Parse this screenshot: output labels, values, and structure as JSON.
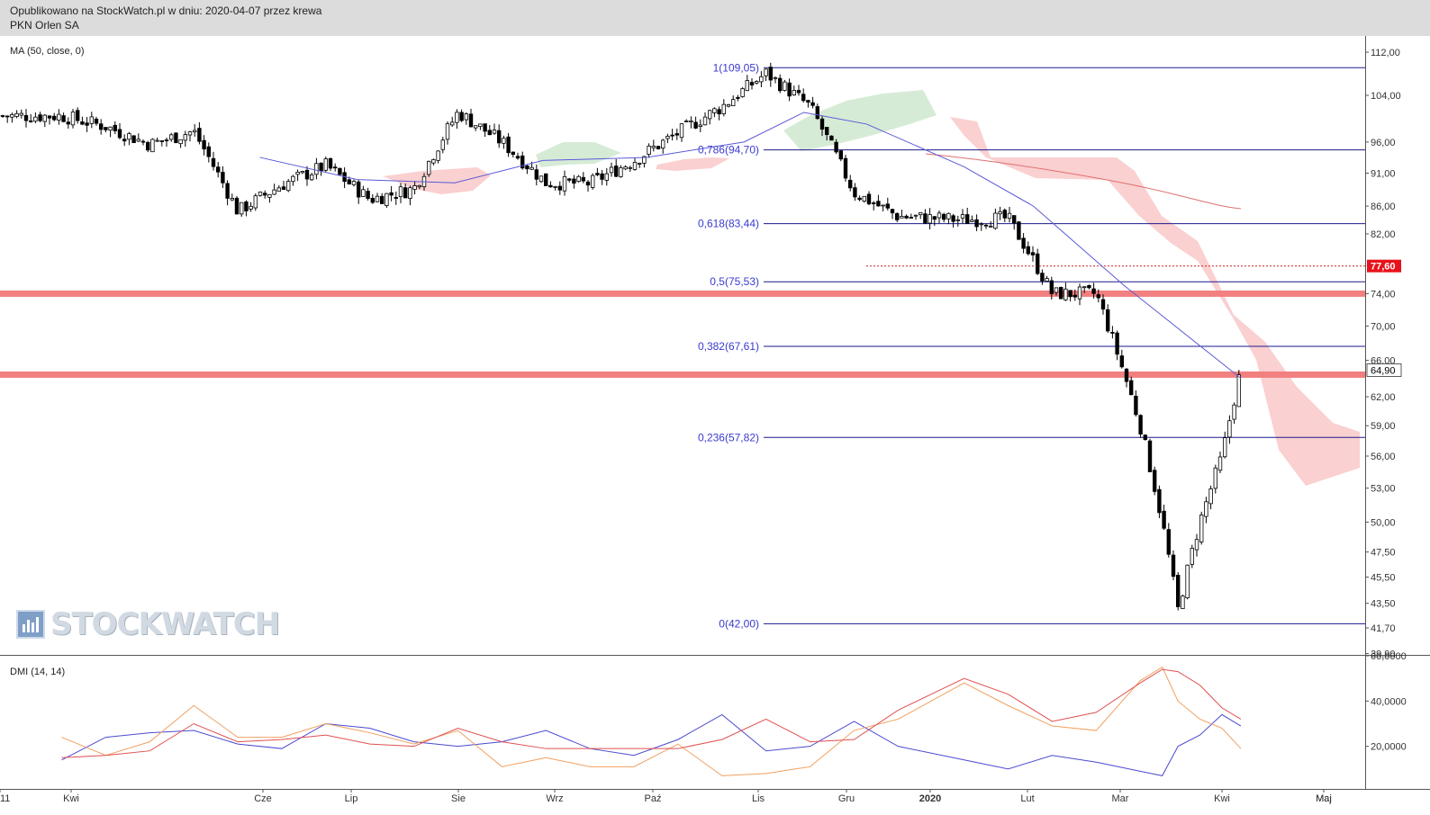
{
  "header": {
    "published": "Opublikowano na StockWatch.pl w dniu: 2020-04-07 przez krewa",
    "instrument": "PKN Orlen SA"
  },
  "logo": {
    "text": "STOCKWATCH"
  },
  "main_indicator_label": "MA (50, close, 0)",
  "dmi_label": "DMI (14, 14)",
  "price_axis_ticks": [
    "112,00",
    "104,00",
    "96,00",
    "91,00",
    "86,00",
    "82,00",
    "74,00",
    "70,00",
    "66,00",
    "62,00",
    "59,00",
    "56,00",
    "53,00",
    "50,00",
    "47,50",
    "45,50",
    "43,50",
    "41,70",
    "39,90"
  ],
  "price_badges": [
    {
      "label": "77,60",
      "value": 77.6,
      "color": "#e8121a"
    },
    {
      "label": "64,90",
      "value": 64.9,
      "color": "#ffffff"
    }
  ],
  "dmi_axis_ticks": [
    "60,0000",
    "40,0000",
    "20,0000"
  ],
  "time_axis_labels": [
    "11",
    "Kwi",
    "Maj",
    "Cze",
    "Lip",
    "Sie",
    "Wrz",
    "Paź",
    "Lis",
    "Gru",
    "2020",
    "Lut",
    "Mar",
    "Kwi",
    "Maj"
  ],
  "fib_levels": [
    {
      "label": "1(109,05)",
      "value": 109.05
    },
    {
      "label": "0,786(94,70)",
      "value": 94.7
    },
    {
      "label": "0,618(83,44)",
      "value": 83.44
    },
    {
      "label": "0,5(75,53)",
      "value": 75.53
    },
    {
      "label": "0,382(67,61)",
      "value": 67.61
    },
    {
      "label": "0,236(57,82)",
      "value": 57.82
    },
    {
      "label": "0(42,00)",
      "value": 42.0
    }
  ],
  "colors": {
    "fib_line": "#1a1a8c",
    "fib_text": "#3a3ad0",
    "ma_line": "#5a5ad8",
    "red_band": "#f28080",
    "cloud_red": "#f9c8c8",
    "cloud_green": "#cfe8cf",
    "ma_long": "#e07070",
    "dmi_plus": "#4a4ad0",
    "dmi_minus": "#f0a060",
    "adx": "#e05050"
  },
  "chart_data": {
    "type": "candlestick",
    "title": "PKN Orlen SA",
    "ylim": [
      39.9,
      112.0
    ],
    "scale": "log",
    "support_resistance_bands": [
      74.0,
      64.4
    ],
    "dotted_level": 77.6,
    "last_price": 64.9,
    "close_series": [
      {
        "date": "2019-03-29",
        "close": 100.4
      },
      {
        "date": "2019-04-12",
        "close": 98.6
      },
      {
        "date": "2019-04-26",
        "close": 95.6
      },
      {
        "date": "2019-05-10",
        "close": 97.8
      },
      {
        "date": "2019-05-24",
        "close": 85.2
      },
      {
        "date": "2019-06-07",
        "close": 89.2
      },
      {
        "date": "2019-06-21",
        "close": 92.2
      },
      {
        "date": "2019-07-05",
        "close": 87.0
      },
      {
        "date": "2019-07-19",
        "close": 88.6
      },
      {
        "date": "2019-08-02",
        "close": 101.0
      },
      {
        "date": "2019-08-16",
        "close": 96.0
      },
      {
        "date": "2019-08-30",
        "close": 89.5
      },
      {
        "date": "2019-09-13",
        "close": 89.4
      },
      {
        "date": "2019-09-27",
        "close": 93.0
      },
      {
        "date": "2019-10-11",
        "close": 97.5
      },
      {
        "date": "2019-10-25",
        "close": 102.0
      },
      {
        "date": "2019-11-08",
        "close": 108.0
      },
      {
        "date": "2019-11-22",
        "close": 102.0
      },
      {
        "date": "2019-12-06",
        "close": 88.0
      },
      {
        "date": "2019-12-20",
        "close": 84.5
      },
      {
        "date": "2020-01-10",
        "close": 84.0
      },
      {
        "date": "2020-01-24",
        "close": 84.2
      },
      {
        "date": "2020-02-07",
        "close": 74.0
      },
      {
        "date": "2020-02-21",
        "close": 74.0
      },
      {
        "date": "2020-03-06",
        "close": 59.0
      },
      {
        "date": "2020-03-13",
        "close": 50.0
      },
      {
        "date": "2020-03-18",
        "close": 43.0
      },
      {
        "date": "2020-03-25",
        "close": 50.0
      },
      {
        "date": "2020-04-01",
        "close": 56.0
      },
      {
        "date": "2020-04-07",
        "close": 64.9
      }
    ],
    "ma50": [
      {
        "date": "2019-05-31",
        "value": 93.5
      },
      {
        "date": "2019-07-01",
        "value": 90.0
      },
      {
        "date": "2019-08-01",
        "value": 89.5
      },
      {
        "date": "2019-08-29",
        "value": 93.0
      },
      {
        "date": "2019-10-01",
        "value": 93.5
      },
      {
        "date": "2019-11-01",
        "value": 96.0
      },
      {
        "date": "2019-11-20",
        "value": 101.0
      },
      {
        "date": "2019-12-10",
        "value": 99.0
      },
      {
        "date": "2020-01-10",
        "value": 92.0
      },
      {
        "date": "2020-02-01",
        "value": 86.0
      },
      {
        "date": "2020-03-01",
        "value": 75.0
      },
      {
        "date": "2020-04-07",
        "value": 64.0
      }
    ],
    "dmi": {
      "ylim": [
        0,
        60
      ],
      "series": [
        {
          "key": "di_plus",
          "values": [
            14,
            24,
            26,
            27,
            21,
            19,
            30,
            28,
            22,
            20,
            22,
            27,
            19,
            16,
            23,
            34,
            18,
            20,
            31,
            20,
            14,
            10,
            16,
            13,
            9,
            7,
            20,
            25,
            34,
            29
          ]
        },
        {
          "key": "di_minus",
          "values": [
            24,
            16,
            22,
            38,
            24,
            24,
            30,
            26,
            21,
            27,
            11,
            15,
            11,
            11,
            21,
            7,
            8,
            11,
            27,
            32,
            48,
            38,
            29,
            27,
            49,
            55,
            40,
            32,
            28,
            19
          ]
        },
        {
          "key": "adx",
          "values": [
            15,
            16,
            18,
            30,
            22,
            23,
            25,
            21,
            20,
            28,
            22,
            19,
            19,
            19,
            19,
            23,
            32,
            22,
            23,
            36,
            50,
            43,
            31,
            35,
            48,
            54,
            53,
            47,
            37,
            32
          ]
        }
      ]
    }
  }
}
